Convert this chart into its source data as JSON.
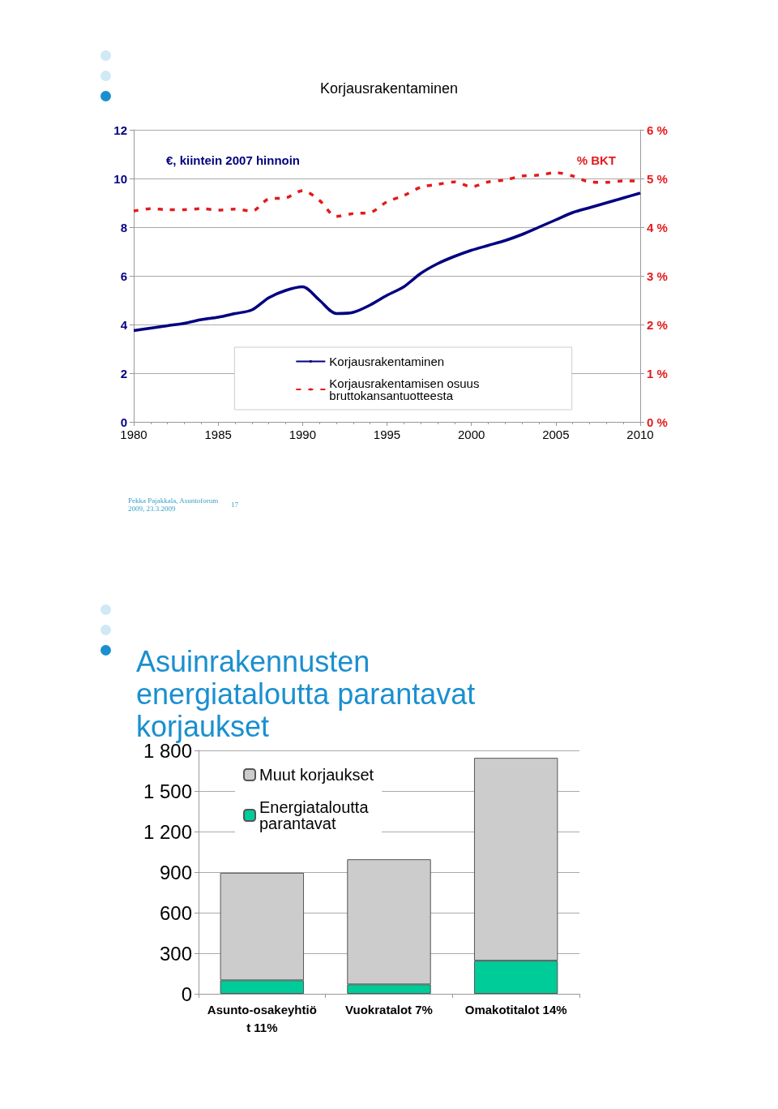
{
  "chart_data": [
    {
      "type": "line",
      "title": "Korjausrakentaminen",
      "ylabel": "€, kiintein 2007 hinnoin",
      "y2label": "% BKT",
      "x": [
        1980,
        1981,
        1982,
        1983,
        1984,
        1985,
        1986,
        1987,
        1988,
        1989,
        1990,
        1991,
        1992,
        1993,
        1994,
        1995,
        1996,
        1997,
        1998,
        1999,
        2000,
        2001,
        2002,
        2003,
        2004,
        2005,
        2006,
        2007,
        2008,
        2009,
        2010
      ],
      "series": [
        {
          "name": "Korjausrakentaminen",
          "color": "#000080",
          "line_style": "solid",
          "values": [
            3.75,
            3.85,
            3.95,
            4.05,
            4.2,
            4.3,
            4.45,
            4.6,
            5.1,
            5.4,
            5.55,
            5.0,
            4.45,
            4.5,
            4.8,
            5.2,
            5.55,
            6.1,
            6.5,
            6.8,
            7.05,
            7.25,
            7.45,
            7.7,
            8.0,
            8.3,
            8.6,
            8.8,
            9.0,
            9.2,
            9.4
          ]
        },
        {
          "name": "Korjausrakentamisen osuus bruttokansantuotteesta",
          "color": "#e31a1c",
          "line_style": "dashed",
          "axis": "y2",
          "values": [
            4.33,
            4.38,
            4.36,
            4.36,
            4.38,
            4.35,
            4.37,
            4.33,
            4.58,
            4.6,
            4.75,
            4.55,
            4.22,
            4.28,
            4.3,
            4.52,
            4.65,
            4.82,
            4.88,
            4.93,
            4.83,
            4.93,
            4.97,
            5.05,
            5.07,
            5.12,
            5.05,
            4.93,
            4.92,
            4.95,
            4.95
          ]
        }
      ],
      "xlim": [
        1980,
        2010
      ],
      "xticks": [
        1980,
        1985,
        1990,
        1995,
        2000,
        2005,
        2010
      ],
      "ylim": [
        0,
        12
      ],
      "yticks": [
        0,
        2,
        4,
        6,
        8,
        10,
        12
      ],
      "y2lim": [
        0,
        6
      ],
      "y2ticks": [
        {
          "value": 0,
          "label": "0 %"
        },
        {
          "value": 1,
          "label": "1 %"
        },
        {
          "value": 2,
          "label": "2 %"
        },
        {
          "value": 3,
          "label": "3 %"
        },
        {
          "value": 4,
          "label": "4 %"
        },
        {
          "value": 5,
          "label": "5 %"
        },
        {
          "value": 6,
          "label": "6 %"
        }
      ],
      "grid": "y",
      "legend": "bottom",
      "marker": "none",
      "annotations": [
        "Pekka Pajakkala, Asuntoforum 2009, 23.3.2009",
        "17"
      ]
    },
    {
      "type": "bar",
      "title": "Asuinrakennusten energiataloutta parantavat korjaukset",
      "stacked": true,
      "categories": [
        "Asunto-osakeyhtiöt 11%",
        "Vuokratalot 7%",
        "Omakotitalot 14%"
      ],
      "series": [
        {
          "name": "Energiataloutta parantavat",
          "color": "#00cc99",
          "values": [
            100,
            70,
            245
          ]
        },
        {
          "name": "Muut korjaukset",
          "color": "#cccccc",
          "values": [
            795,
            925,
            1500
          ]
        }
      ],
      "ylim": [
        0,
        1800
      ],
      "yticks": [
        0,
        300,
        600,
        900,
        {
          "value": 1200,
          "label": "1 200"
        },
        {
          "value": 1500,
          "label": "1 500"
        },
        {
          "value": 1800,
          "label": "1 800"
        }
      ],
      "grid": "y",
      "legend": "top left"
    }
  ]
}
